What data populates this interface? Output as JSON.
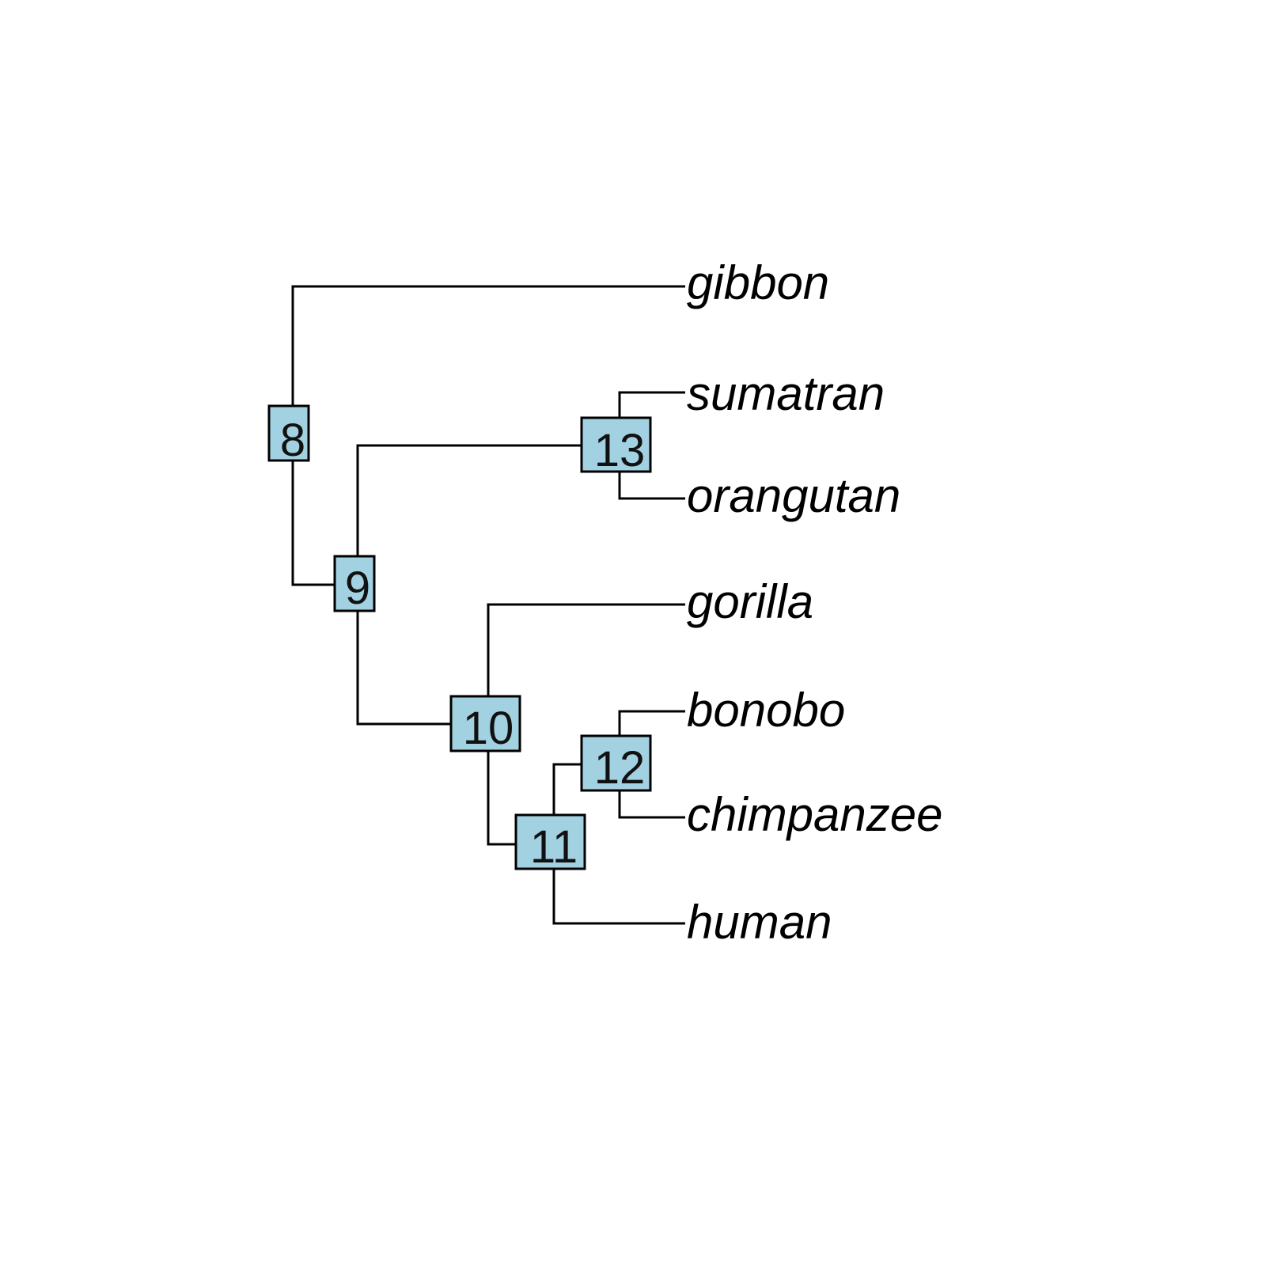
{
  "tree": {
    "node_fill": "#a2d1e2",
    "line_color": "#000000",
    "tips": [
      {
        "id": "gibbon",
        "label": "gibbon"
      },
      {
        "id": "sumatran",
        "label": "sumatran"
      },
      {
        "id": "orangutan",
        "label": "orangutan"
      },
      {
        "id": "gorilla",
        "label": "gorilla"
      },
      {
        "id": "bonobo",
        "label": "bonobo"
      },
      {
        "id": "chimpanzee",
        "label": "chimpanzee"
      },
      {
        "id": "human",
        "label": "human"
      }
    ],
    "nodes": [
      {
        "id": "8",
        "label": "8",
        "children": [
          "gibbon",
          "9"
        ]
      },
      {
        "id": "9",
        "label": "9",
        "children": [
          "13",
          "10"
        ]
      },
      {
        "id": "13",
        "label": "13",
        "children": [
          "sumatran",
          "orangutan"
        ]
      },
      {
        "id": "10",
        "label": "10",
        "children": [
          "gorilla",
          "11"
        ]
      },
      {
        "id": "11",
        "label": "11",
        "children": [
          "12",
          "human"
        ]
      },
      {
        "id": "12",
        "label": "12",
        "children": [
          "bonobo",
          "chimpanzee"
        ]
      }
    ]
  }
}
